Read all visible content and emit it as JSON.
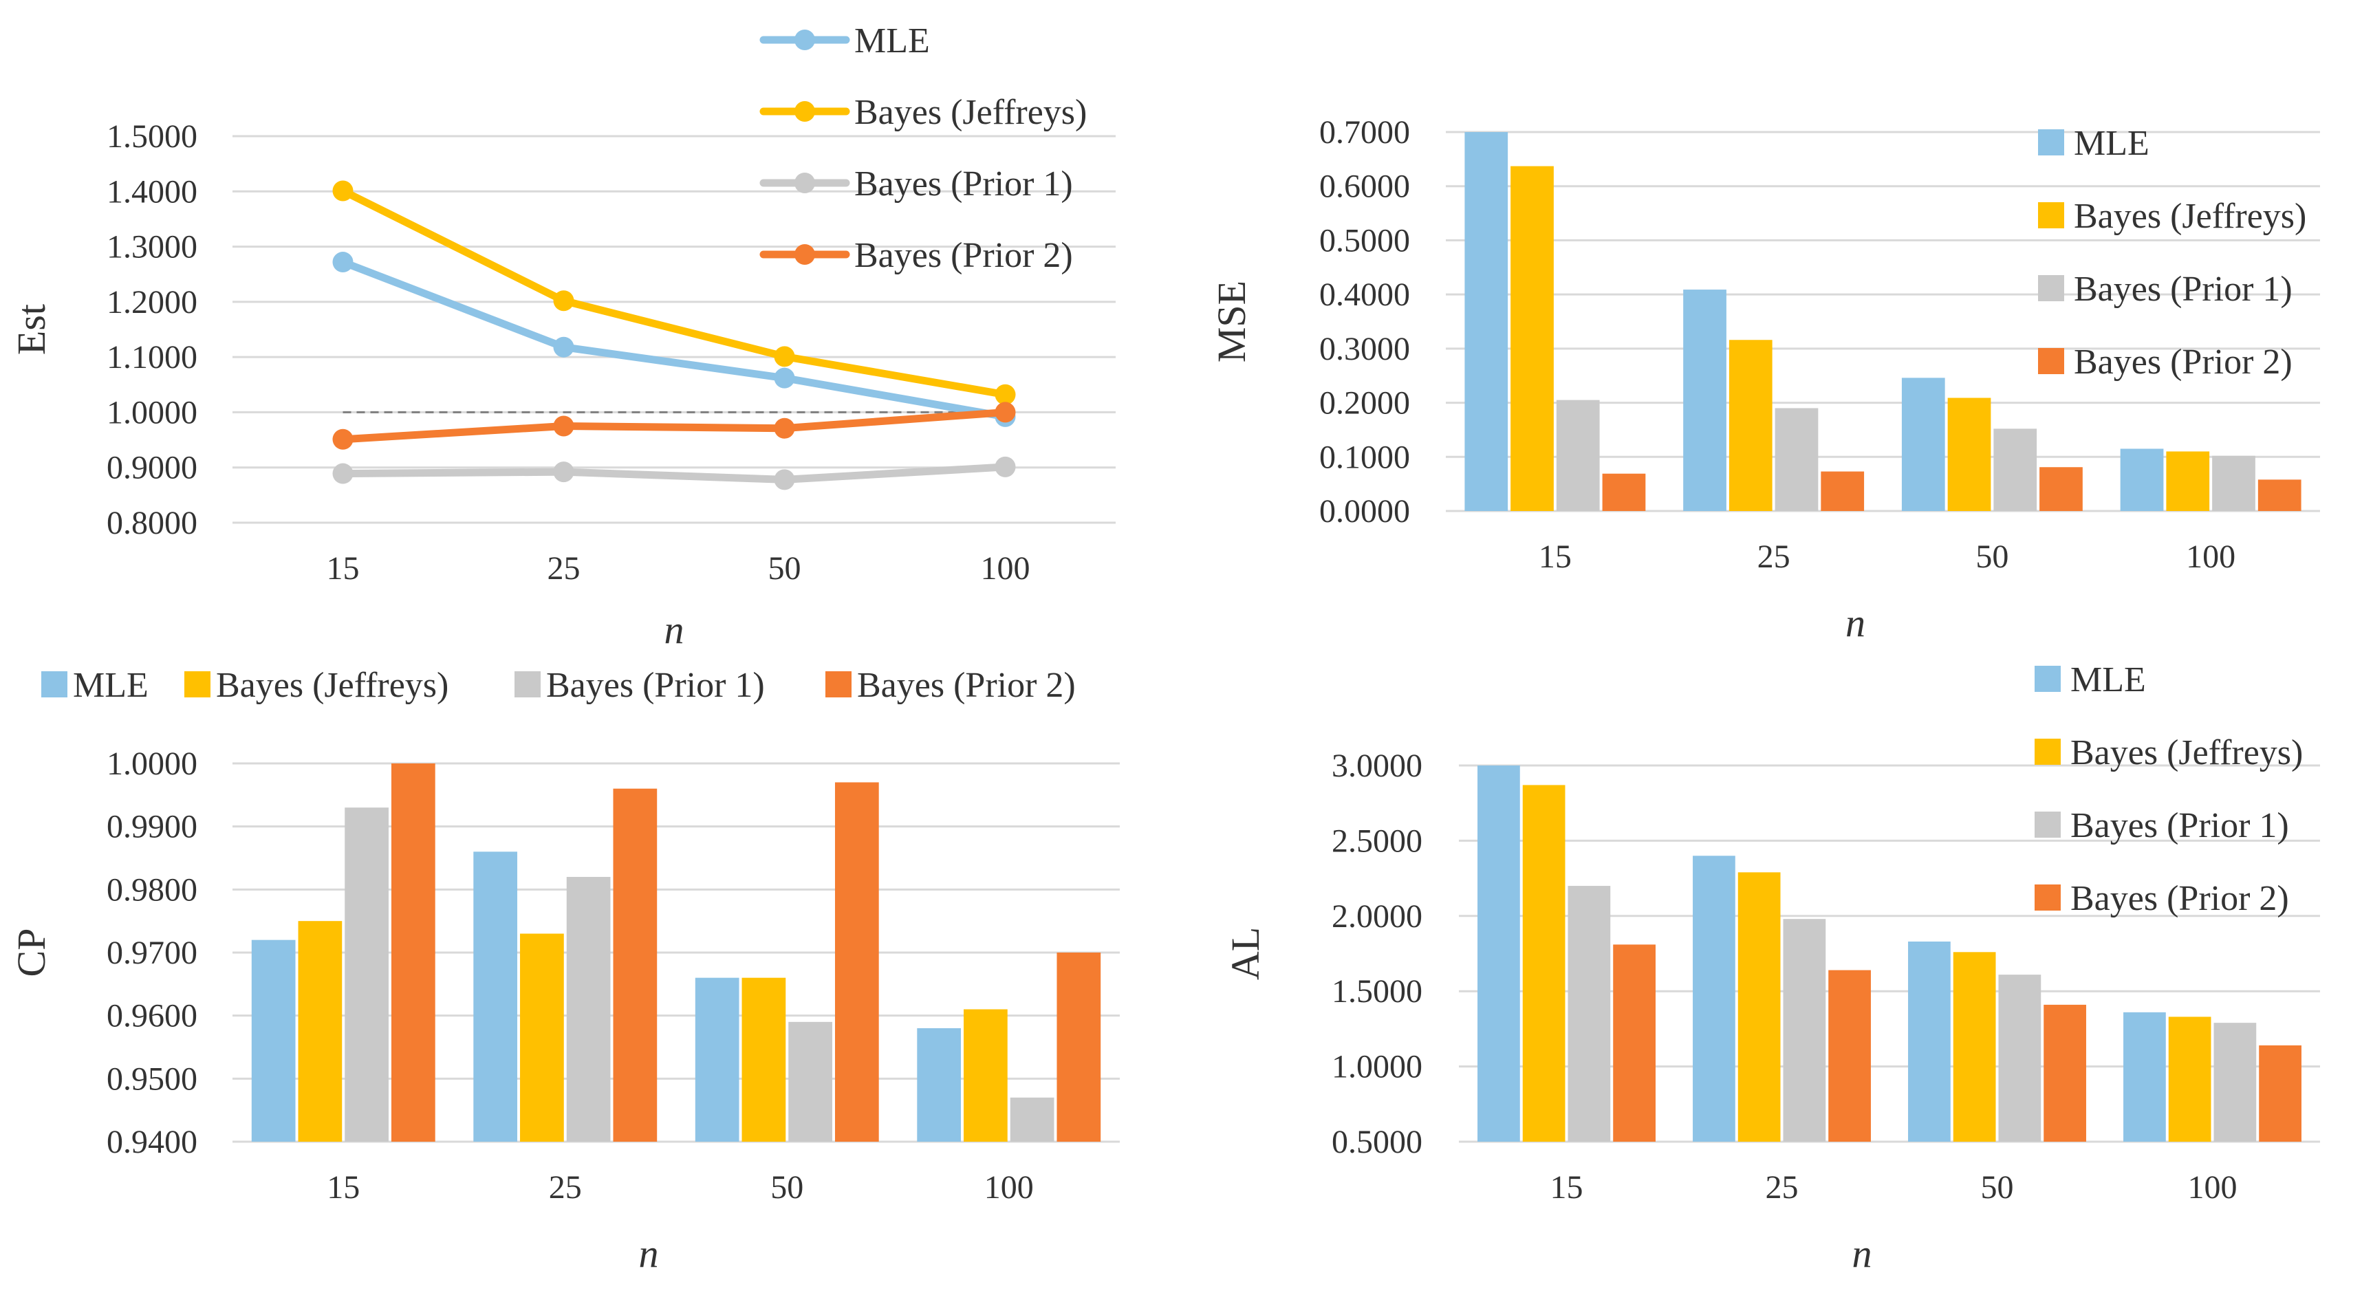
{
  "chart_data": [
    {
      "id": "est",
      "type": "line",
      "ylabel": "Est",
      "xlabel": "n",
      "categories": [
        "15",
        "25",
        "50",
        "100"
      ],
      "ylim": [
        0.8,
        1.5
      ],
      "yticks": [
        "0.8000",
        "0.9000",
        "1.0000",
        "1.1000",
        "1.2000",
        "1.3000",
        "1.4000",
        "1.5000"
      ],
      "reference_line": 1.0,
      "legend": "right",
      "series": [
        {
          "name": "MLE",
          "color": "#8DC3E6",
          "values": [
            1.272,
            1.118,
            1.062,
            0.992
          ]
        },
        {
          "name": "Bayes (Jeffreys)",
          "color": "#FFC000",
          "values": [
            1.401,
            1.202,
            1.101,
            1.032
          ]
        },
        {
          "name": "Bayes (Prior 1)",
          "color": "#C9C9C9",
          "values": [
            0.889,
            0.892,
            0.878,
            0.901
          ]
        },
        {
          "name": "Bayes (Prior 2)",
          "color": "#F47C30",
          "values": [
            0.951,
            0.975,
            0.971,
            1.0
          ]
        }
      ]
    },
    {
      "id": "mse",
      "type": "bar",
      "ylabel": "MSE",
      "xlabel": "n",
      "categories": [
        "15",
        "25",
        "50",
        "100"
      ],
      "ylim": [
        0.0,
        0.7
      ],
      "yticks": [
        "0.0000",
        "0.1000",
        "0.2000",
        "0.3000",
        "0.4000",
        "0.5000",
        "0.6000",
        "0.7000"
      ],
      "legend": "right",
      "series": [
        {
          "name": "MLE",
          "color": "#8DC3E6",
          "values": [
            0.7,
            0.409,
            0.246,
            0.115
          ]
        },
        {
          "name": "Bayes (Jeffreys)",
          "color": "#FFC000",
          "values": [
            0.637,
            0.316,
            0.209,
            0.11
          ]
        },
        {
          "name": "Bayes (Prior 1)",
          "color": "#C9C9C9",
          "values": [
            0.205,
            0.19,
            0.152,
            0.102
          ]
        },
        {
          "name": "Bayes (Prior 2)",
          "color": "#F47C30",
          "values": [
            0.069,
            0.073,
            0.081,
            0.058
          ]
        }
      ]
    },
    {
      "id": "cp",
      "type": "bar",
      "ylabel": "CP",
      "xlabel": "n",
      "categories": [
        "15",
        "25",
        "50",
        "100"
      ],
      "ylim": [
        0.94,
        1.0
      ],
      "yticks": [
        "0.9400",
        "0.9500",
        "0.9600",
        "0.9700",
        "0.9800",
        "0.9900",
        "1.0000"
      ],
      "legend": "top",
      "series": [
        {
          "name": "MLE",
          "color": "#8DC3E6",
          "values": [
            0.972,
            0.986,
            0.966,
            0.958
          ]
        },
        {
          "name": "Bayes (Jeffreys)",
          "color": "#FFC000",
          "values": [
            0.975,
            0.973,
            0.966,
            0.961
          ]
        },
        {
          "name": "Bayes (Prior 1)",
          "color": "#C9C9C9",
          "values": [
            0.993,
            0.982,
            0.959,
            0.947
          ]
        },
        {
          "name": "Bayes (Prior 2)",
          "color": "#F47C30",
          "values": [
            1.0,
            0.996,
            0.997,
            0.97
          ]
        }
      ]
    },
    {
      "id": "al",
      "type": "bar",
      "ylabel": "AL",
      "xlabel": "n",
      "categories": [
        "15",
        "25",
        "50",
        "100"
      ],
      "ylim": [
        0.5,
        3.0
      ],
      "yticks": [
        "0.5000",
        "1.0000",
        "1.5000",
        "2.0000",
        "2.5000",
        "3.0000"
      ],
      "legend": "right",
      "series": [
        {
          "name": "MLE",
          "color": "#8DC3E6",
          "values": [
            3.0,
            2.4,
            1.83,
            1.36
          ]
        },
        {
          "name": "Bayes (Jeffreys)",
          "color": "#FFC000",
          "values": [
            2.87,
            2.29,
            1.76,
            1.33
          ]
        },
        {
          "name": "Bayes (Prior 1)",
          "color": "#C9C9C9",
          "values": [
            2.2,
            1.98,
            1.61,
            1.29
          ]
        },
        {
          "name": "Bayes (Prior 2)",
          "color": "#F47C30",
          "values": [
            1.81,
            1.64,
            1.41,
            1.14
          ]
        }
      ]
    }
  ]
}
